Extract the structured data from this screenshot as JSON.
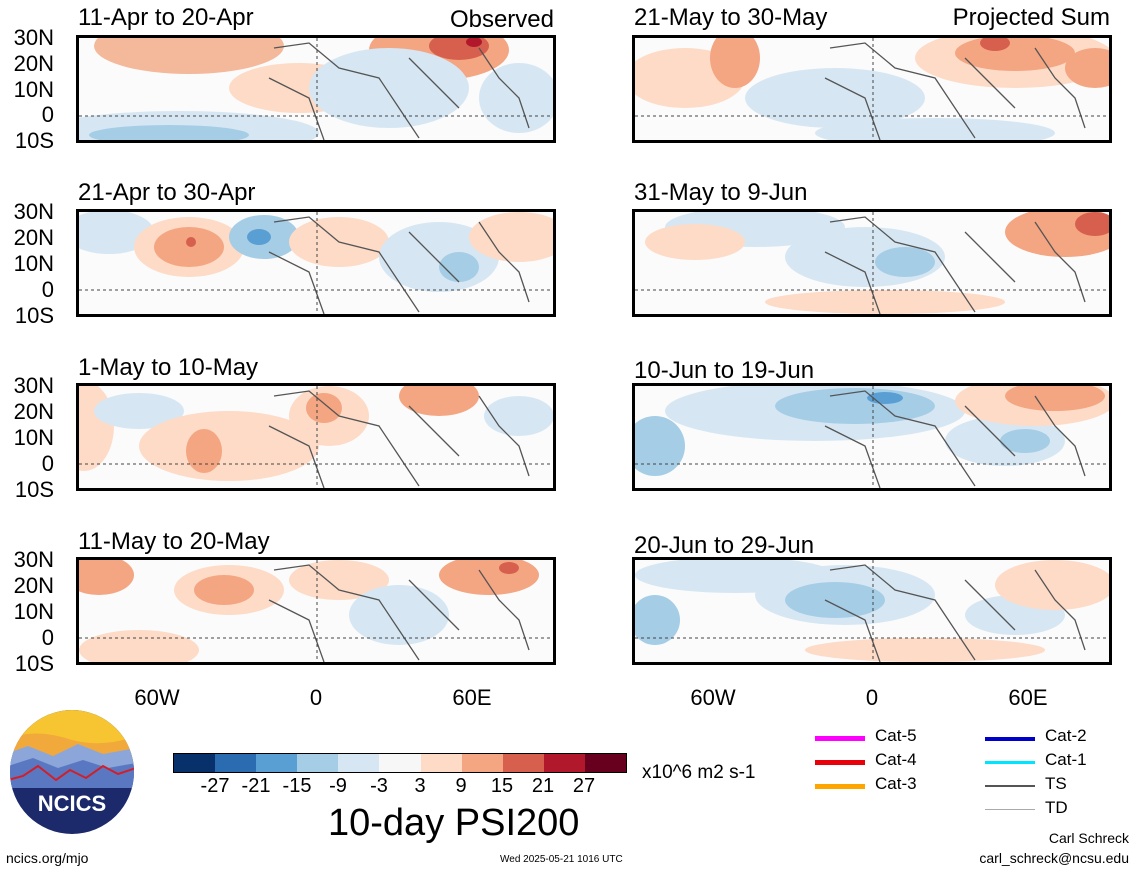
{
  "panels": {
    "left": [
      {
        "title": "11-Apr to 20-Apr",
        "tag": "Observed"
      },
      {
        "title": "21-Apr to 30-Apr",
        "tag": ""
      },
      {
        "title": "1-May to 10-May",
        "tag": ""
      },
      {
        "title": "11-May to 20-May",
        "tag": ""
      }
    ],
    "right": [
      {
        "title": "21-May to 30-May",
        "tag": "Projected Sum"
      },
      {
        "title": "31-May to 9-Jun",
        "tag": ""
      },
      {
        "title": "10-Jun to 19-Jun",
        "tag": ""
      },
      {
        "title": "20-Jun to 29-Jun",
        "tag": ""
      }
    ]
  },
  "axes": {
    "lat_labels": [
      "30N",
      "20N",
      "10N",
      "0",
      "10S"
    ],
    "lon_labels": [
      "60W",
      "0",
      "60E"
    ]
  },
  "colorbar": {
    "colors": [
      "#08306b",
      "#2b6cb0",
      "#5a9fd4",
      "#a6cde6",
      "#d6e7f3",
      "#f7f7f7",
      "#fddbc7",
      "#f4a582",
      "#d6604d",
      "#b2182b",
      "#67001f"
    ],
    "tick_labels": [
      "-27",
      "-21",
      "-15",
      "-9",
      "-3",
      "3",
      "9",
      "15",
      "21",
      "27"
    ],
    "units": "x10^6 m2 s-1"
  },
  "title": "10-day PSI200",
  "storm_legend": [
    {
      "label": "Cat-5",
      "color": "#ff00ff",
      "width": 5
    },
    {
      "label": "Cat-4",
      "color": "#e8000b",
      "width": 5
    },
    {
      "label": "Cat-3",
      "color": "#ffa500",
      "width": 5
    },
    {
      "label": "Cat-2",
      "color": "#0000cc",
      "width": 4
    },
    {
      "label": "Cat-1",
      "color": "#00e5ff",
      "width": 3
    },
    {
      "label": "TS",
      "color": "#555555",
      "width": 2
    },
    {
      "label": "TD",
      "color": "#aaaaaa",
      "width": 1
    }
  ],
  "logo": {
    "text": "NCICS"
  },
  "footer": {
    "url": "ncics.org/mjo",
    "timestamp": "Wed 2025-05-21 1016 UTC",
    "author": "Carl Schreck",
    "email": "carl_schreck@ncsu.edu"
  }
}
